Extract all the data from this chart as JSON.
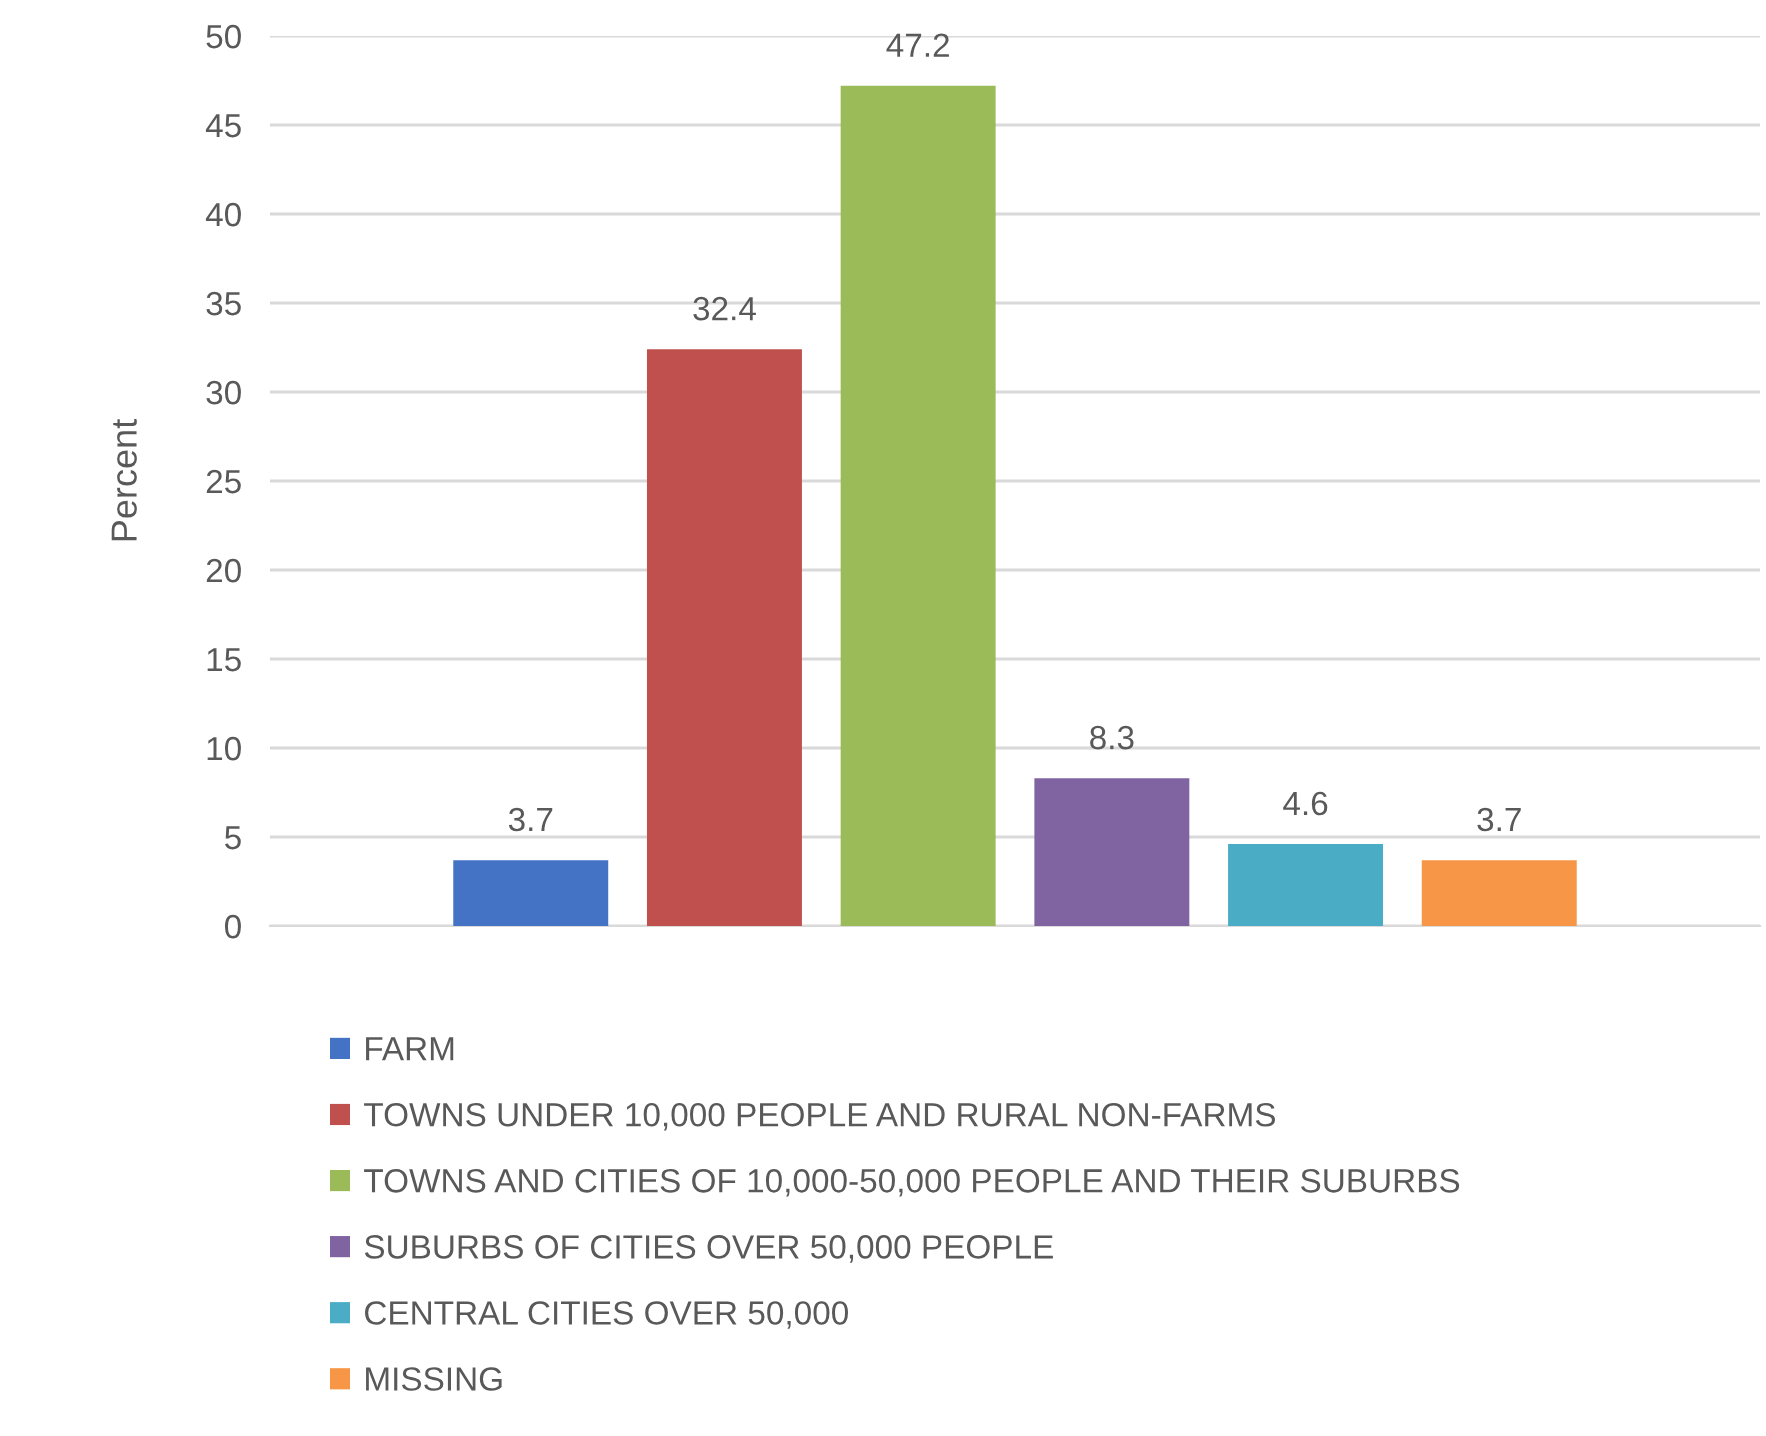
{
  "chart_data": {
    "type": "bar",
    "ylabel": "Percent",
    "categories": [
      null
    ],
    "series": [
      {
        "name": "FARM",
        "color": "#4472c4",
        "values": [
          3.7
        ]
      },
      {
        "name": "TOWNS UNDER 10,000 PEOPLE AND RURAL NON-FARMS",
        "color": "#c0504d",
        "values": [
          32.4
        ]
      },
      {
        "name": "TOWNS AND CITIES OF 10,000-50,000 PEOPLE AND THEIR SUBURBS",
        "color": "#9bbb59",
        "values": [
          47.2
        ]
      },
      {
        "name": "SUBURBS OF CITIES OVER 50,000 PEOPLE",
        "color": "#8064a2",
        "values": [
          8.3
        ]
      },
      {
        "name": "CENTRAL CITIES OVER 50,000",
        "color": "#4bacc6",
        "values": [
          4.6
        ]
      },
      {
        "name": "MISSING",
        "color": "#f79646",
        "values": [
          3.7
        ]
      }
    ],
    "ylim": [
      0,
      50
    ],
    "yticks": [
      0,
      5,
      10,
      15,
      20,
      25,
      30,
      35,
      40,
      45,
      50
    ],
    "grid": "y",
    "legend": "bottom",
    "data_labels": true
  }
}
